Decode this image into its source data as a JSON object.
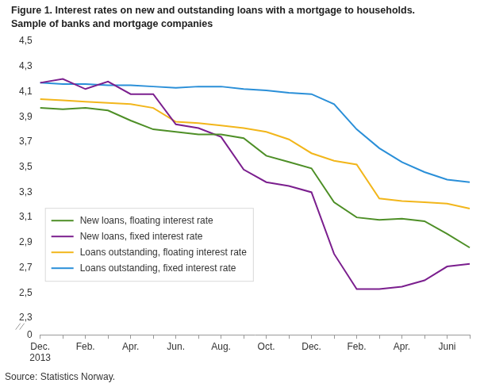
{
  "chart_data": {
    "type": "line",
    "title": "Figure 1. Interest rates on new and outstanding loans with a mortgage to households.",
    "subtitle": "Sample of banks and mortgage companies",
    "source": "Source: Statistics Norway.",
    "categories": [
      "Dec. 2013",
      null,
      "Feb.",
      null,
      "Apr.",
      null,
      "Jun.",
      null,
      "Aug.",
      null,
      "Oct.",
      null,
      "Dec.",
      null,
      "Feb.",
      null,
      "Apr.",
      null,
      "Juni",
      null
    ],
    "series": [
      {
        "name": "New loans, floating interest rate",
        "color": "#4e8f27",
        "values": [
          3.97,
          3.96,
          3.97,
          3.95,
          3.87,
          3.8,
          3.78,
          3.76,
          3.76,
          3.73,
          3.59,
          3.54,
          3.49,
          3.22,
          3.1,
          3.08,
          3.09,
          3.07,
          2.97,
          2.86
        ]
      },
      {
        "name": "New loans, fixed interest rate",
        "color": "#7b1f8e",
        "values": [
          4.17,
          4.2,
          4.12,
          4.18,
          4.08,
          4.08,
          3.84,
          3.81,
          3.74,
          3.48,
          3.38,
          3.35,
          3.3,
          2.81,
          2.53,
          2.53,
          2.55,
          2.6,
          2.71,
          2.73
        ]
      },
      {
        "name": "Loans outstanding, floating interest rate",
        "color": "#f2b61b",
        "values": [
          4.04,
          4.03,
          4.02,
          4.01,
          4.0,
          3.97,
          3.86,
          3.85,
          3.83,
          3.81,
          3.78,
          3.72,
          3.61,
          3.55,
          3.52,
          3.25,
          3.23,
          3.22,
          3.21,
          3.17
        ]
      },
      {
        "name": "Loans outstanding, fixed interest rate",
        "color": "#2a8fd8",
        "values": [
          4.17,
          4.16,
          4.16,
          4.15,
          4.15,
          4.14,
          4.13,
          4.14,
          4.14,
          4.12,
          4.11,
          4.09,
          4.08,
          4.0,
          3.8,
          3.65,
          3.54,
          3.46,
          3.4,
          3.38
        ]
      }
    ],
    "ylim": [
      0,
      4.5
    ],
    "yticks": [
      0,
      {
        "value": 2.3,
        "label": "2,3"
      },
      {
        "value": 2.5,
        "label": "2,5"
      },
      {
        "value": 2.7,
        "label": "2,7"
      },
      {
        "value": 2.9,
        "label": "2,9"
      },
      {
        "value": 3.1,
        "label": "3,1"
      },
      {
        "value": 3.3,
        "label": "3,3"
      },
      {
        "value": 3.5,
        "label": "3,5"
      },
      {
        "value": 3.7,
        "label": "3,7"
      },
      {
        "value": 3.9,
        "label": "3,9"
      },
      {
        "value": 4.1,
        "label": "4,1"
      },
      {
        "value": 4.3,
        "label": "4,3"
      },
      {
        "value": 4.5,
        "label": "4,5"
      }
    ],
    "grid": false,
    "legend": "lower left"
  }
}
